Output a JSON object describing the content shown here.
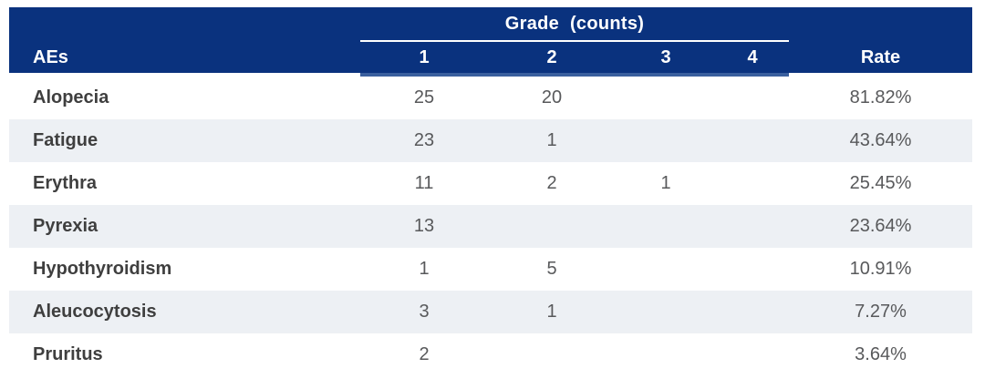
{
  "chart_data": {
    "type": "table",
    "column_group": {
      "label": "Grade (counts)",
      "span_columns": [
        "1",
        "2",
        "3",
        "4"
      ]
    },
    "columns": [
      "AEs",
      "1",
      "2",
      "3",
      "4",
      "Rate"
    ],
    "rows": [
      [
        "Alopecia",
        "25",
        "20",
        "",
        "",
        "81.82%"
      ],
      [
        "Fatigue",
        "23",
        "1",
        "",
        "",
        "43.64%"
      ],
      [
        "Erythra",
        "11",
        "2",
        "1",
        "",
        "25.45%"
      ],
      [
        "Pyrexia",
        "13",
        "",
        "",
        "",
        "23.64%"
      ],
      [
        "Hypothyroidism",
        "1",
        "5",
        "",
        "",
        "10.91%"
      ],
      [
        "Aleucocytosis",
        "3",
        "1",
        "",
        "",
        "7.27%"
      ],
      [
        "Pruritus",
        "2",
        "",
        "",
        "",
        "3.64%"
      ]
    ]
  },
  "colors": {
    "header_bg": "#0a327e",
    "header_text": "#ffffff",
    "group_underline": "#ffffff",
    "grade_accent_strip": "#3a5f9e",
    "stripe_bg": "#edf0f4",
    "name_text": "#3f3f3f",
    "value_text": "#58595b",
    "page_bg": "#ffffff"
  }
}
